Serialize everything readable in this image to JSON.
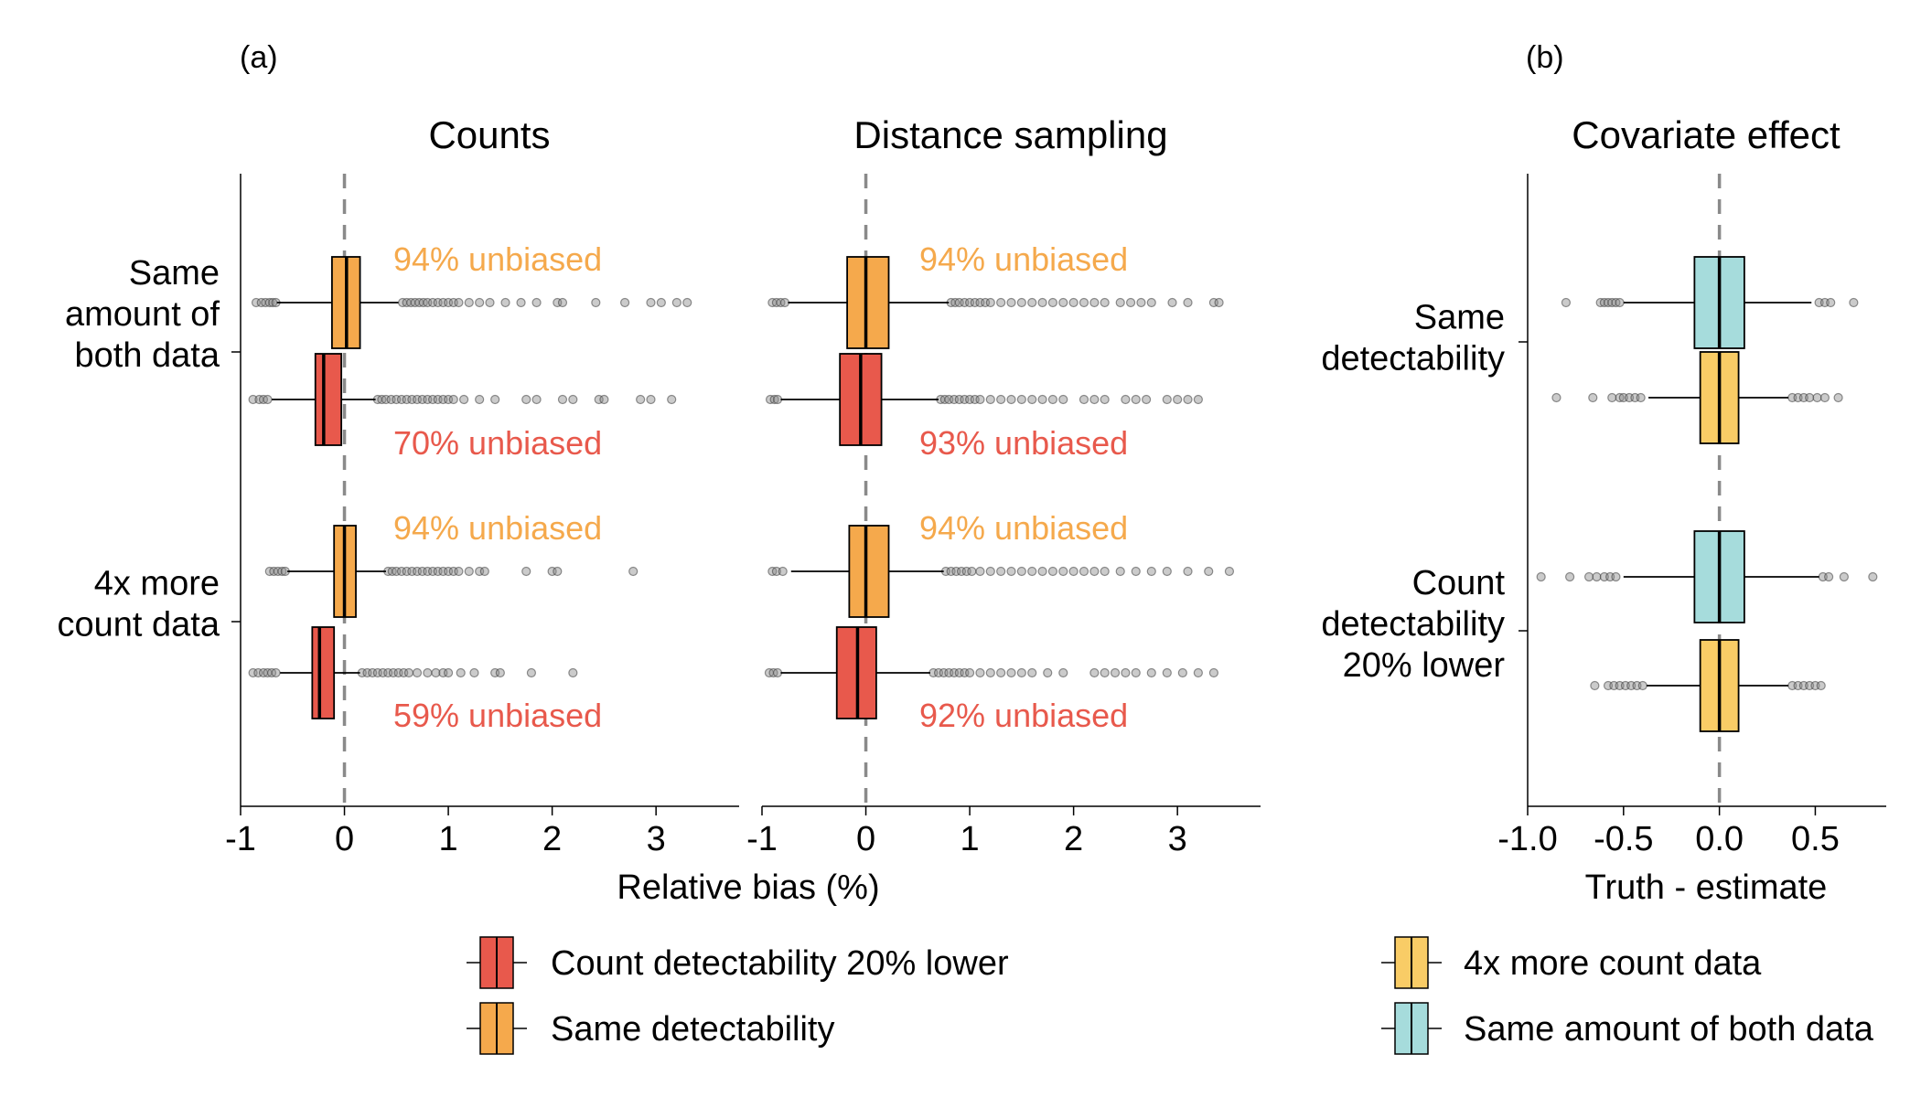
{
  "panel_labels": {
    "a": "(a)",
    "b": "(b)"
  },
  "colors": {
    "count_lower": "#E8594C",
    "same_detect": "#F5A94C",
    "more_count": "#F9CC66",
    "same_amount": "#A6DCDC",
    "outlier": "#7a7a7a",
    "zero_line": "#8a8a8a"
  },
  "legend_a": [
    {
      "label": "Count detectability 20% lower",
      "color": "#E8594C"
    },
    {
      "label": "Same detectability",
      "color": "#F5A94C"
    }
  ],
  "legend_b": [
    {
      "label": "4x more count data",
      "color": "#F9CC66"
    },
    {
      "label": "Same amount of both data",
      "color": "#A6DCDC"
    }
  ],
  "chart_data": [
    {
      "type": "boxplot",
      "panel": "(a)",
      "title": "Counts",
      "xlabel": "Relative bias (%)",
      "xlim": [
        -1,
        3.8
      ],
      "xticks": [
        -1,
        0,
        1,
        2,
        3
      ],
      "reference_line": 0,
      "groups": [
        "Same amount of both data",
        "4x more count data"
      ],
      "series": [
        {
          "group": "Same amount of both data",
          "name": "Same detectability",
          "color": "#F5A94C",
          "q1": -0.12,
          "median": 0.02,
          "q3": 0.15,
          "whisker_low": -0.65,
          "whisker_high": 0.52,
          "outliers": [
            -0.85,
            -0.8,
            -0.76,
            -0.72,
            -0.69,
            -0.66,
            0.56,
            0.6,
            0.64,
            0.68,
            0.72,
            0.76,
            0.8,
            0.85,
            0.9,
            0.95,
            1.0,
            1.05,
            1.1,
            1.2,
            1.3,
            1.4,
            1.55,
            1.7,
            1.85,
            2.05,
            2.1,
            2.42,
            2.7,
            2.95,
            3.05,
            3.2,
            3.3
          ],
          "annotation": "94% unbiased"
        },
        {
          "group": "Same amount of both data",
          "name": "Count detectability 20% lower",
          "color": "#E8594C",
          "q1": -0.28,
          "median": -0.2,
          "q3": -0.03,
          "whisker_low": -0.7,
          "whisker_high": 0.3,
          "outliers": [
            -0.88,
            -0.82,
            -0.78,
            -0.74,
            0.32,
            0.36,
            0.4,
            0.45,
            0.5,
            0.55,
            0.6,
            0.65,
            0.7,
            0.75,
            0.8,
            0.85,
            0.9,
            0.95,
            1.0,
            1.05,
            1.15,
            1.3,
            1.45,
            1.75,
            1.85,
            2.1,
            2.2,
            2.45,
            2.5,
            2.85,
            2.95,
            3.15
          ],
          "annotation": "70% unbiased"
        },
        {
          "group": "4x more count data",
          "name": "Same detectability",
          "color": "#F5A94C",
          "q1": -0.1,
          "median": 0.0,
          "q3": 0.11,
          "whisker_low": -0.55,
          "whisker_high": 0.4,
          "outliers": [
            -0.72,
            -0.68,
            -0.64,
            -0.6,
            -0.57,
            0.42,
            0.46,
            0.5,
            0.55,
            0.6,
            0.65,
            0.7,
            0.75,
            0.8,
            0.85,
            0.9,
            0.95,
            1.0,
            1.05,
            1.1,
            1.2,
            1.3,
            1.35,
            1.75,
            2.0,
            2.05,
            2.78
          ],
          "annotation": "94% unbiased"
        },
        {
          "group": "4x more count data",
          "name": "Count detectability 20% lower",
          "color": "#E8594C",
          "q1": -0.31,
          "median": -0.24,
          "q3": -0.1,
          "whisker_low": -0.62,
          "whisker_high": 0.15,
          "outliers": [
            -0.88,
            -0.83,
            -0.78,
            -0.74,
            -0.7,
            -0.66,
            0.17,
            0.22,
            0.27,
            0.32,
            0.37,
            0.42,
            0.47,
            0.52,
            0.57,
            0.62,
            0.7,
            0.8,
            0.88,
            0.95,
            1.0,
            1.12,
            1.25,
            1.45,
            1.5,
            1.8,
            2.2
          ],
          "annotation": "59% unbiased"
        }
      ]
    },
    {
      "type": "boxplot",
      "panel": "(a)",
      "title": "Distance sampling",
      "xlabel": "Relative bias (%)",
      "xlim": [
        -1,
        3.8
      ],
      "xticks": [
        -1,
        0,
        1,
        2,
        3
      ],
      "reference_line": 0,
      "groups": [
        "Same amount of both data",
        "4x more count data"
      ],
      "series": [
        {
          "group": "Same amount of both data",
          "name": "Same detectability",
          "color": "#F5A94C",
          "q1": -0.18,
          "median": 0.0,
          "q3": 0.22,
          "whisker_low": -0.75,
          "whisker_high": 0.8,
          "outliers": [
            -0.9,
            -0.86,
            -0.82,
            -0.78,
            0.82,
            0.86,
            0.9,
            0.95,
            1.0,
            1.05,
            1.1,
            1.15,
            1.2,
            1.3,
            1.4,
            1.5,
            1.6,
            1.7,
            1.8,
            1.9,
            2.0,
            2.1,
            2.2,
            2.3,
            2.45,
            2.55,
            2.65,
            2.75,
            2.95,
            3.1,
            3.35,
            3.4
          ],
          "annotation": "94% unbiased"
        },
        {
          "group": "Same amount of both data",
          "name": "Count detectability 20% lower",
          "color": "#E8594C",
          "q1": -0.25,
          "median": -0.05,
          "q3": 0.15,
          "whisker_low": -0.82,
          "whisker_high": 0.7,
          "outliers": [
            -0.92,
            -0.88,
            -0.85,
            0.72,
            0.76,
            0.8,
            0.85,
            0.9,
            0.95,
            1.0,
            1.05,
            1.1,
            1.2,
            1.3,
            1.4,
            1.5,
            1.6,
            1.7,
            1.8,
            1.9,
            2.1,
            2.2,
            2.3,
            2.5,
            2.6,
            2.7,
            2.9,
            3.0,
            3.1,
            3.2
          ],
          "annotation": "93% unbiased"
        },
        {
          "group": "4x more count data",
          "name": "Same detectability",
          "color": "#F5A94C",
          "q1": -0.16,
          "median": 0.0,
          "q3": 0.22,
          "whisker_low": -0.72,
          "whisker_high": 0.75,
          "outliers": [
            -0.9,
            -0.86,
            -0.8,
            0.77,
            0.82,
            0.87,
            0.92,
            0.97,
            1.02,
            1.1,
            1.2,
            1.3,
            1.4,
            1.5,
            1.6,
            1.7,
            1.8,
            1.9,
            2.0,
            2.1,
            2.2,
            2.3,
            2.45,
            2.6,
            2.75,
            2.9,
            3.1,
            3.3,
            3.5
          ],
          "annotation": "94% unbiased"
        },
        {
          "group": "4x more count data",
          "name": "Count detectability 20% lower",
          "color": "#E8594C",
          "q1": -0.28,
          "median": -0.08,
          "q3": 0.1,
          "whisker_low": -0.82,
          "whisker_high": 0.62,
          "outliers": [
            -0.93,
            -0.89,
            -0.85,
            0.65,
            0.7,
            0.75,
            0.8,
            0.85,
            0.9,
            0.95,
            1.0,
            1.1,
            1.2,
            1.3,
            1.4,
            1.5,
            1.6,
            1.75,
            1.9,
            2.2,
            2.3,
            2.4,
            2.5,
            2.6,
            2.75,
            2.9,
            3.05,
            3.2,
            3.35
          ],
          "annotation": "92% unbiased"
        }
      ]
    },
    {
      "type": "boxplot",
      "panel": "(b)",
      "title": "Covariate effect",
      "xlabel": "Truth - estimate",
      "xlim": [
        -1.0,
        0.87
      ],
      "xticks": [
        -1.0,
        -0.5,
        0.0,
        0.5
      ],
      "reference_line": 0,
      "groups": [
        "Same detectability",
        "Count detectability 20% lower"
      ],
      "series": [
        {
          "group": "Same detectability",
          "name": "Same amount of both data",
          "color": "#A6DCDC",
          "q1": -0.13,
          "median": 0.0,
          "q3": 0.13,
          "whisker_low": -0.5,
          "whisker_high": 0.48,
          "outliers": [
            -0.8,
            -0.62,
            -0.6,
            -0.58,
            -0.56,
            -0.54,
            -0.52,
            0.52,
            0.55,
            0.58,
            0.7
          ]
        },
        {
          "group": "Same detectability",
          "name": "4x more count data",
          "color": "#F9CC66",
          "q1": -0.1,
          "median": 0.0,
          "q3": 0.1,
          "whisker_low": -0.37,
          "whisker_high": 0.36,
          "outliers": [
            -0.85,
            -0.66,
            -0.56,
            -0.52,
            -0.5,
            -0.47,
            -0.44,
            -0.41,
            0.38,
            0.41,
            0.44,
            0.47,
            0.51,
            0.55,
            0.62
          ]
        },
        {
          "group": "Count detectability 20% lower",
          "name": "Same amount of both data",
          "color": "#A6DCDC",
          "q1": -0.13,
          "median": 0.0,
          "q3": 0.13,
          "whisker_low": -0.5,
          "whisker_high": 0.52,
          "outliers": [
            -0.93,
            -0.78,
            -0.68,
            -0.64,
            -0.6,
            -0.57,
            -0.54,
            0.54,
            0.57,
            0.65,
            0.8
          ]
        },
        {
          "group": "Count detectability 20% lower",
          "name": "4x more count data",
          "color": "#F9CC66",
          "q1": -0.1,
          "median": 0.0,
          "q3": 0.1,
          "whisker_low": -0.38,
          "whisker_high": 0.36,
          "outliers": [
            -0.65,
            -0.58,
            -0.55,
            -0.52,
            -0.49,
            -0.46,
            -0.43,
            -0.4,
            0.38,
            0.41,
            0.44,
            0.47,
            0.5,
            0.53
          ]
        }
      ]
    }
  ]
}
